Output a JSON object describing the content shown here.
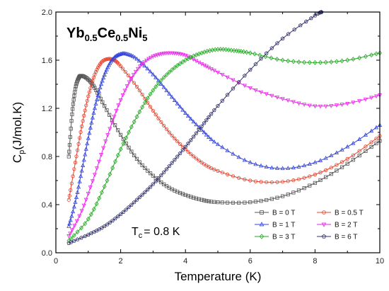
{
  "chart_data": {
    "type": "line",
    "annotation_compound": {
      "base1": "Yb",
      "sub1": "0.5",
      "base2": "Ce",
      "sub2": "0.5",
      "base3": "Ni",
      "sub3": "5"
    },
    "annotation_tc": {
      "base": "T",
      "sub": "c",
      "rest": "= 0.8 K"
    },
    "xlabel": "Temperature (K)",
    "ylabel": {
      "base": "C",
      "sub": "p",
      "rest": "(J/mol.K)"
    },
    "xlim": [
      0,
      10
    ],
    "ylim": [
      0.0,
      2.0
    ],
    "xticks": [
      "0",
      "2",
      "4",
      "6",
      "8",
      "10"
    ],
    "yticks": [
      "0.0",
      "0.4",
      "0.8",
      "1.2",
      "1.6",
      "2.0"
    ],
    "grid": false,
    "legend_position": "bottom-right",
    "series": [
      {
        "name": "B = 0 T",
        "color": "#555555",
        "marker": "square",
        "points": [
          [
            0.4,
            0.8
          ],
          [
            0.5,
            1.15
          ],
          [
            0.6,
            1.36
          ],
          [
            0.7,
            1.45
          ],
          [
            0.8,
            1.47
          ],
          [
            1.0,
            1.44
          ],
          [
            1.2,
            1.37
          ],
          [
            1.5,
            1.22
          ],
          [
            2.0,
            0.98
          ],
          [
            2.5,
            0.78
          ],
          [
            3.0,
            0.64
          ],
          [
            3.5,
            0.54
          ],
          [
            4.0,
            0.48
          ],
          [
            4.5,
            0.44
          ],
          [
            5.0,
            0.42
          ],
          [
            6.0,
            0.42
          ],
          [
            7.0,
            0.47
          ],
          [
            8.0,
            0.58
          ],
          [
            9.0,
            0.74
          ],
          [
            10.0,
            0.93
          ]
        ]
      },
      {
        "name": "B = 0.5 T",
        "color": "#e8412c",
        "marker": "circle",
        "points": [
          [
            0.4,
            0.44
          ],
          [
            0.6,
            0.75
          ],
          [
            0.8,
            1.05
          ],
          [
            1.0,
            1.3
          ],
          [
            1.2,
            1.48
          ],
          [
            1.4,
            1.58
          ],
          [
            1.6,
            1.61
          ],
          [
            1.8,
            1.6
          ],
          [
            2.0,
            1.55
          ],
          [
            2.5,
            1.38
          ],
          [
            3.0,
            1.18
          ],
          [
            3.5,
            1.0
          ],
          [
            4.0,
            0.86
          ],
          [
            4.5,
            0.75
          ],
          [
            5.0,
            0.68
          ],
          [
            6.0,
            0.6
          ],
          [
            7.0,
            0.59
          ],
          [
            8.0,
            0.65
          ],
          [
            9.0,
            0.78
          ],
          [
            10.0,
            0.97
          ]
        ]
      },
      {
        "name": "B = 1 T",
        "color": "#3344dd",
        "marker": "triangle",
        "points": [
          [
            0.4,
            0.22
          ],
          [
            0.6,
            0.42
          ],
          [
            0.8,
            0.68
          ],
          [
            1.0,
            0.95
          ],
          [
            1.2,
            1.2
          ],
          [
            1.4,
            1.4
          ],
          [
            1.6,
            1.54
          ],
          [
            1.8,
            1.62
          ],
          [
            2.0,
            1.65
          ],
          [
            2.2,
            1.65
          ],
          [
            2.5,
            1.61
          ],
          [
            3.0,
            1.48
          ],
          [
            3.5,
            1.32
          ],
          [
            4.0,
            1.16
          ],
          [
            4.5,
            1.02
          ],
          [
            5.0,
            0.9
          ],
          [
            6.0,
            0.75
          ],
          [
            7.0,
            0.7
          ],
          [
            8.0,
            0.75
          ],
          [
            9.0,
            0.88
          ],
          [
            10.0,
            1.06
          ]
        ]
      },
      {
        "name": "B = 2 T",
        "color": "#ee22ee",
        "marker": "triangle-down",
        "points": [
          [
            0.4,
            0.14
          ],
          [
            0.8,
            0.35
          ],
          [
            1.2,
            0.65
          ],
          [
            1.6,
            0.98
          ],
          [
            2.0,
            1.27
          ],
          [
            2.4,
            1.48
          ],
          [
            2.8,
            1.6
          ],
          [
            3.2,
            1.65
          ],
          [
            3.6,
            1.66
          ],
          [
            4.0,
            1.64
          ],
          [
            4.5,
            1.57
          ],
          [
            5.0,
            1.5
          ],
          [
            6.0,
            1.37
          ],
          [
            7.0,
            1.28
          ],
          [
            8.0,
            1.22
          ],
          [
            9.0,
            1.24
          ],
          [
            10.0,
            1.31
          ]
        ]
      },
      {
        "name": "B = 3 T",
        "color": "#22aa22",
        "marker": "diamond",
        "points": [
          [
            0.4,
            0.1
          ],
          [
            1.0,
            0.28
          ],
          [
            1.5,
            0.55
          ],
          [
            2.0,
            0.86
          ],
          [
            2.5,
            1.13
          ],
          [
            3.0,
            1.35
          ],
          [
            3.5,
            1.5
          ],
          [
            4.0,
            1.6
          ],
          [
            4.5,
            1.66
          ],
          [
            5.0,
            1.69
          ],
          [
            5.5,
            1.68
          ],
          [
            6.0,
            1.66
          ],
          [
            7.0,
            1.6
          ],
          [
            8.0,
            1.58
          ],
          [
            9.0,
            1.6
          ],
          [
            10.0,
            1.66
          ]
        ]
      },
      {
        "name": "B = 6 T",
        "color": "#33336e",
        "marker": "pentagon",
        "points": [
          [
            0.4,
            0.08
          ],
          [
            1.0,
            0.15
          ],
          [
            1.5,
            0.22
          ],
          [
            2.0,
            0.32
          ],
          [
            2.5,
            0.44
          ],
          [
            3.0,
            0.57
          ],
          [
            3.5,
            0.72
          ],
          [
            4.0,
            0.88
          ],
          [
            4.5,
            1.05
          ],
          [
            5.0,
            1.22
          ],
          [
            6.0,
            1.52
          ],
          [
            7.0,
            1.78
          ],
          [
            8.0,
            1.97
          ],
          [
            8.2,
            2.0
          ]
        ]
      }
    ]
  }
}
